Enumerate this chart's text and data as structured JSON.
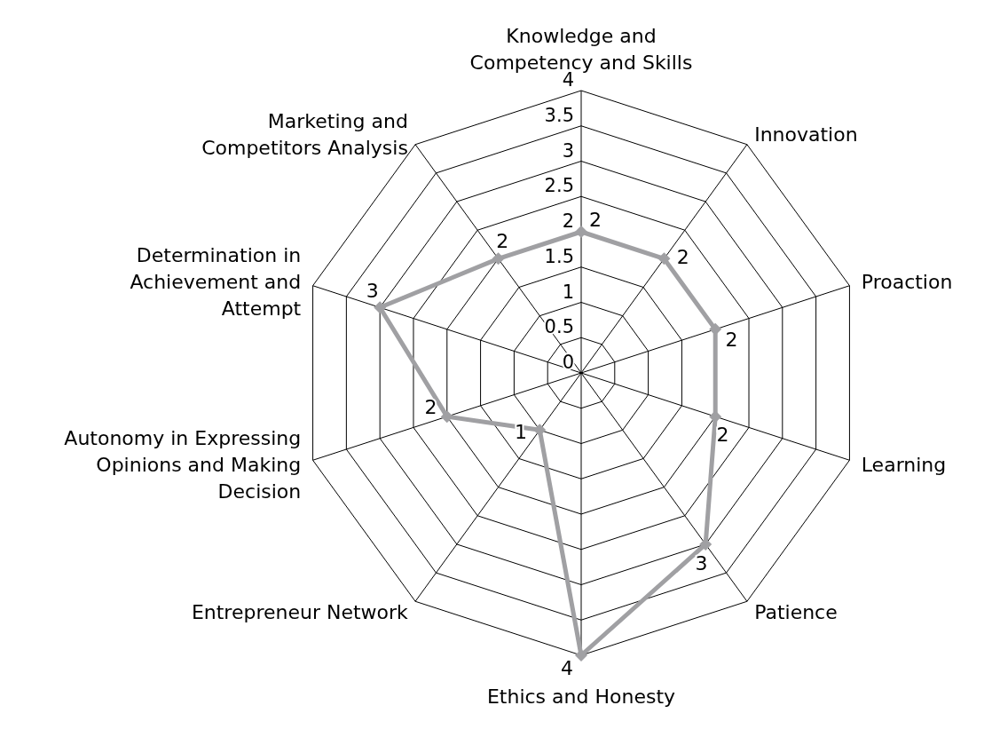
{
  "chart_data": {
    "type": "radar",
    "categories": [
      "Knowledge and Competency and Skills",
      "Innovation",
      "Proaction",
      "Learning",
      "Patience",
      "Ethics and Honesty",
      "Entrepreneur Network",
      "Autonomy in Expressing Opinions and Making Decision",
      "Determination in Achievement and Attempt",
      "Marketing and Competitors Analysis"
    ],
    "series": [
      {
        "color": "#a0a0a3",
        "values": [
          2,
          2,
          2,
          2,
          3,
          4,
          1,
          2,
          3,
          2
        ]
      }
    ],
    "ylim": [
      0,
      4
    ],
    "yticks": [
      0,
      0.5,
      1,
      1.5,
      2,
      2.5,
      3,
      3.5,
      4
    ],
    "grid": true,
    "data_labels": true,
    "marker": "diamond",
    "line_style": "solid"
  }
}
